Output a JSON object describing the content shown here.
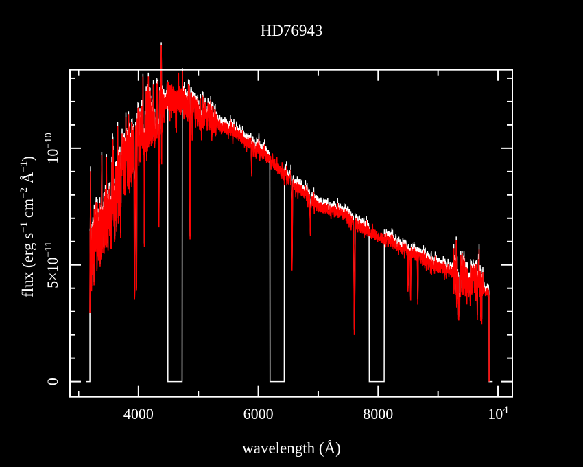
{
  "chart_data": {
    "type": "line",
    "title": "HD76943",
    "xlabel": "wavelength (Å)",
    "ylabel": "flux (erg s⁻¹ cm⁻² Å⁻¹)",
    "xlim": [
      2857,
      10240
    ],
    "ylim": [
      -6.5e-12,
      1.336e-10
    ],
    "x_ticks": [
      {
        "value": 4000,
        "label": "4000"
      },
      {
        "value": 6000,
        "label": "6000"
      },
      {
        "value": 8000,
        "label": "8000"
      },
      {
        "value": 10000,
        "label": "10",
        "sup": "4"
      }
    ],
    "y_ticks": [
      {
        "value": 0,
        "label": "0"
      },
      {
        "value": 5e-11,
        "label": "5×10",
        "sup": "−11"
      },
      {
        "value": 1e-10,
        "label": "10",
        "sup": "−10"
      }
    ],
    "ylabel_parts": {
      "a": "flux (erg s",
      "s1": "−1",
      "b": " cm",
      "s2": "−2",
      "c": " Å",
      "s3": "−1",
      "d": ")"
    },
    "flux_unit": 1e-10,
    "continuum": [
      [
        3190,
        0.6
      ],
      [
        3400,
        0.66
      ],
      [
        3600,
        0.75
      ],
      [
        3800,
        0.93
      ],
      [
        4000,
        1.05
      ],
      [
        4200,
        1.13
      ],
      [
        4500,
        1.22
      ],
      [
        4700,
        1.2
      ],
      [
        5000,
        1.15
      ],
      [
        5500,
        1.08
      ],
      [
        6000,
        1.0
      ],
      [
        6500,
        0.87
      ],
      [
        7000,
        0.75
      ],
      [
        7500,
        0.71
      ],
      [
        7700,
        0.66
      ],
      [
        8000,
        0.62
      ],
      [
        8500,
        0.56
      ],
      [
        9000,
        0.49
      ],
      [
        9300,
        0.46
      ],
      [
        9600,
        0.43
      ],
      [
        9850,
        0.38
      ]
    ],
    "absorption_lines": [
      [
        3934,
        0.72,
        6
      ],
      [
        3968,
        0.7,
        6
      ],
      [
        4101,
        0.45,
        6
      ],
      [
        4340,
        0.45,
        6
      ],
      [
        4861,
        0.5,
        6
      ],
      [
        5890,
        0.12,
        5
      ],
      [
        6563,
        0.45,
        7
      ],
      [
        6870,
        0.2,
        8
      ],
      [
        7605,
        0.7,
        10
      ],
      [
        8498,
        0.35,
        5
      ],
      [
        8542,
        0.38,
        5
      ],
      [
        8662,
        0.38,
        5
      ],
      [
        9350,
        0.3,
        20
      ]
    ],
    "zero_gaps": [
      [
        4491,
        4731
      ],
      [
        6194,
        6434
      ],
      [
        7851,
        8103
      ]
    ],
    "range": [
      3190,
      9852
    ],
    "series": [
      {
        "name": "model (white)",
        "color": "#ffffff"
      },
      {
        "name": "observed (red)",
        "color": "#ff0000"
      }
    ]
  }
}
